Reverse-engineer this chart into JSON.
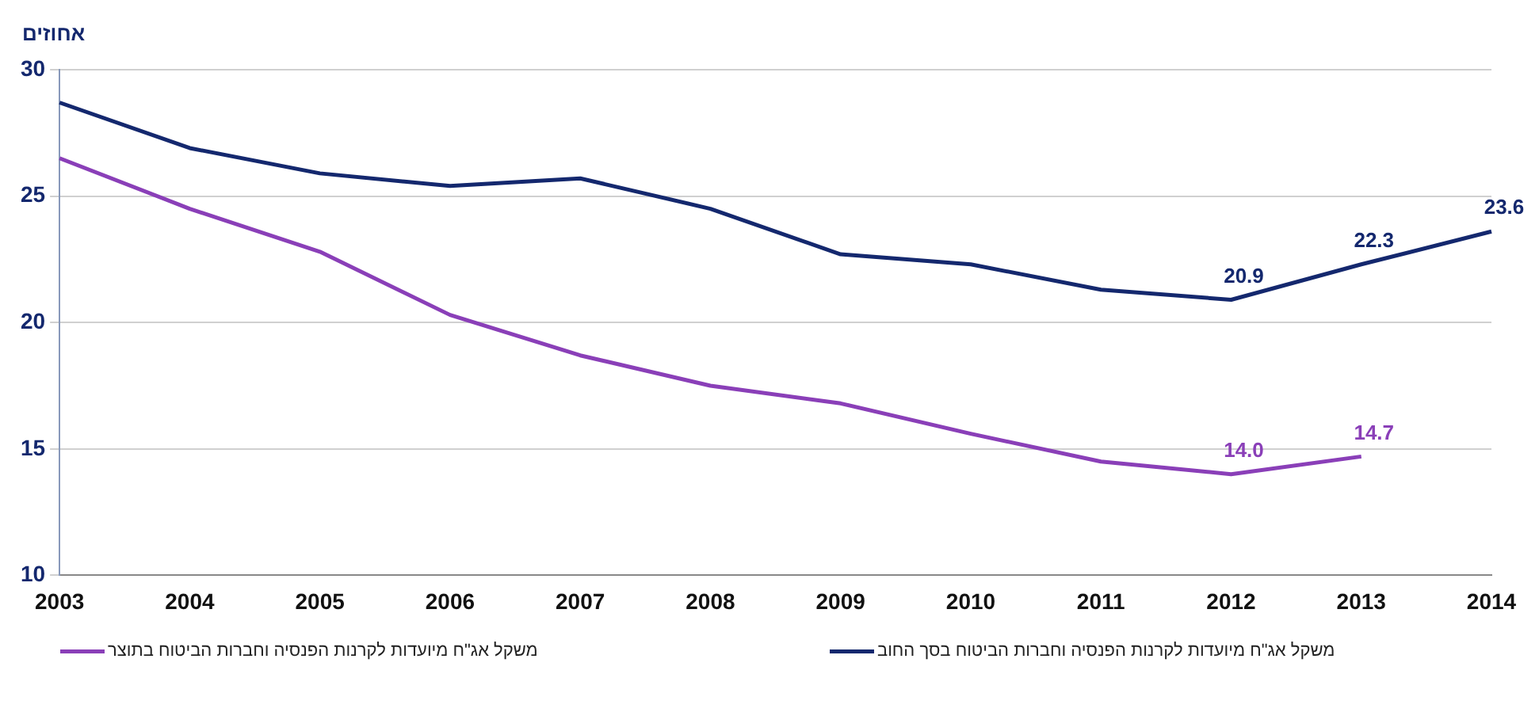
{
  "chart_data": {
    "type": "line",
    "ylabel": "אחוזים",
    "categories": [
      "2003",
      "2004",
      "2005",
      "2006",
      "2007",
      "2008",
      "2009",
      "2010",
      "2011",
      "2012",
      "2013",
      "2014"
    ],
    "ylim": [
      10,
      30
    ],
    "yticks": [
      10,
      15,
      20,
      25,
      30
    ],
    "grid": "y",
    "legend": "bottom",
    "marker": "none",
    "series": [
      {
        "name": "משקל אג\"ח מיועדות לקרנות הפנסיה וחברות הביטוח בתוצר",
        "color": "#8a3fb8",
        "values": [
          26.5,
          24.5,
          22.8,
          20.3,
          18.7,
          17.5,
          16.8,
          15.6,
          14.5,
          14.0,
          14.7,
          null
        ],
        "value_labels": [
          null,
          null,
          null,
          null,
          null,
          null,
          null,
          null,
          null,
          "14.0",
          "14.7",
          null
        ]
      },
      {
        "name": "משקל אג\"ח מיועדות לקרנות הפנסיה וחברות הביטוח בסך החוב",
        "color": "#14286e",
        "values": [
          28.7,
          26.9,
          25.9,
          25.4,
          25.7,
          24.5,
          22.7,
          22.3,
          21.3,
          20.9,
          22.3,
          23.6
        ],
        "value_labels": [
          null,
          null,
          null,
          null,
          null,
          null,
          null,
          null,
          null,
          "20.9",
          "22.3",
          "23.6"
        ]
      }
    ]
  }
}
